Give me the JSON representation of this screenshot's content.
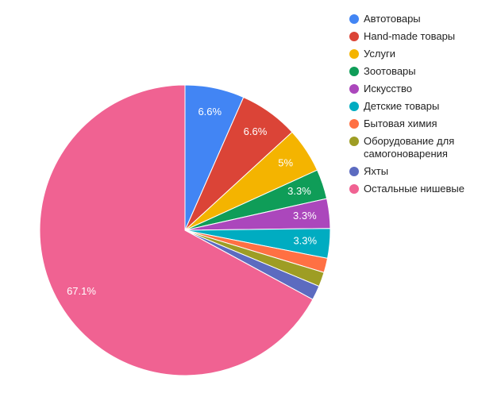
{
  "chart_data": {
    "type": "pie",
    "categories": [
      "Автотовары",
      "Hand-made товары",
      "Услуги",
      "Зоотовары",
      "Искусство",
      "Детские товары",
      "Бытовая химия",
      "Оборудование для самогоноварения",
      "Яхты",
      "Остальные нишевые"
    ],
    "values": [
      6.6,
      6.6,
      5,
      3.3,
      3.3,
      3.3,
      1.6,
      1.6,
      1.6,
      67.1
    ],
    "value_labels": [
      "6.6%",
      "6.6%",
      "5%",
      "3.3%",
      "3.3%",
      "3.3%",
      null,
      null,
      null,
      "67.1%"
    ],
    "colors": [
      "#4285f4",
      "#db4437",
      "#f4b400",
      "#0f9d58",
      "#ab47bc",
      "#00acc1",
      "#ff7043",
      "#9e9d24",
      "#5c6bc0",
      "#f06292"
    ],
    "legend": "right"
  }
}
